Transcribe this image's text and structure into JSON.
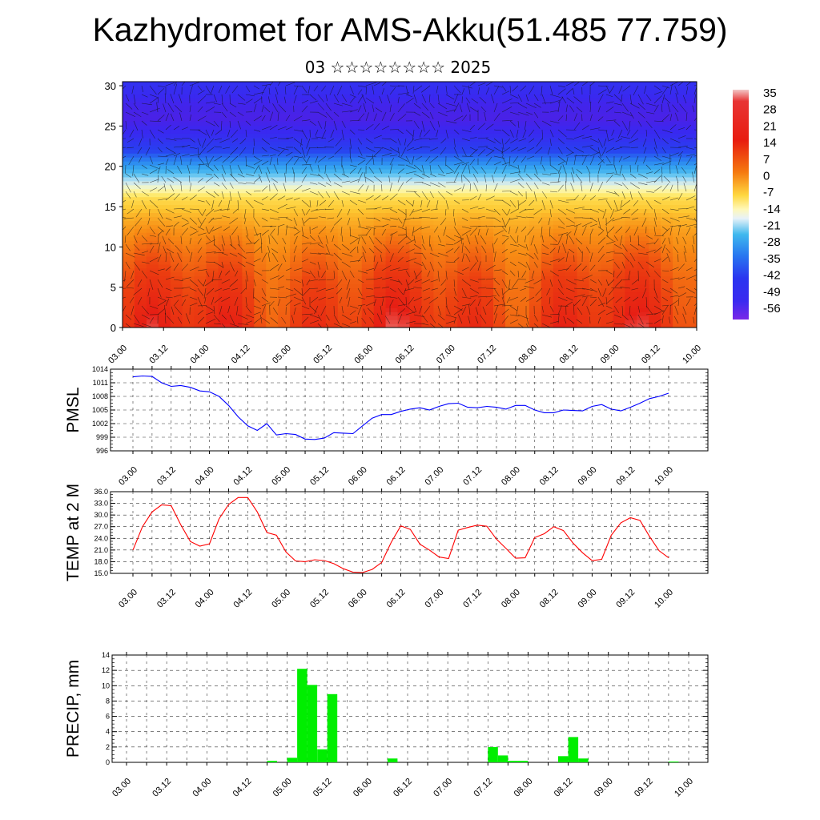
{
  "title": "Kazhydromet for AMS-Akku(51.485 77.759)",
  "subtitle": "03 ☆☆☆☆☆☆☆☆ 2025",
  "time_ticks": [
    "03.00",
    "03.12",
    "04.00",
    "04.12",
    "05.00",
    "05.12",
    "06.00",
    "06.12",
    "07.00",
    "07.12",
    "08.00",
    "08.12",
    "09.00",
    "09.12",
    "10.00"
  ],
  "chart_data": [
    {
      "type": "heatmap",
      "title": "",
      "xlabel": "",
      "ylabel": "",
      "x_ticks": [
        "03.00",
        "03.12",
        "04.00",
        "04.12",
        "05.00",
        "05.12",
        "06.00",
        "06.12",
        "07.00",
        "07.12",
        "08.00",
        "08.12",
        "09.00",
        "09.12",
        "10.00"
      ],
      "y_ticks": [
        0,
        5,
        10,
        15,
        20,
        25,
        30
      ],
      "ylim": [
        0,
        30.5
      ],
      "colorbar_labels": [
        "35",
        "28",
        "21",
        "14",
        "7",
        "0",
        "-7",
        "-14",
        "-21",
        "-28",
        "-35",
        "-42",
        "-49",
        "-56"
      ],
      "overlay": "wind vectors",
      "profile_levels": [
        0,
        3,
        6,
        9,
        12,
        14,
        16,
        17,
        18,
        19,
        20,
        21,
        22,
        24,
        26,
        28,
        30.5
      ],
      "profile_values": [
        24,
        22,
        20,
        17,
        13,
        9,
        3,
        -5,
        -13,
        -20,
        -28,
        -34,
        -42,
        -48,
        -52,
        -50,
        -46
      ],
      "colors": {
        "low": "#6018d8",
        "mid": "#fff59a",
        "high": "#e81c10"
      }
    },
    {
      "type": "line",
      "ylabel": "PMSL",
      "y_ticks": [
        996,
        999,
        1002,
        1005,
        1008,
        1011,
        1014
      ],
      "ylim": [
        996,
        1014
      ],
      "color": "#0000ff",
      "x": [
        0,
        3,
        6,
        9,
        12,
        15,
        18,
        21,
        24,
        27,
        30,
        33,
        36,
        39,
        42,
        45,
        48,
        51,
        54,
        57,
        60,
        63,
        66,
        69,
        72,
        75,
        78,
        81,
        84,
        87,
        90,
        93,
        96,
        99,
        102,
        105,
        108,
        111,
        114,
        117,
        120,
        123,
        126,
        129,
        132,
        135,
        138,
        141,
        144,
        147,
        150,
        153,
        156,
        159,
        162,
        165,
        168
      ],
      "values": [
        1012.3,
        1012.5,
        1012.4,
        1011.0,
        1010.2,
        1010.4,
        1010.0,
        1009.2,
        1009.0,
        1008.0,
        1006.0,
        1003.5,
        1001.5,
        1000.5,
        1002.0,
        999.5,
        999.8,
        999.6,
        998.6,
        998.5,
        998.8,
        1000.0,
        999.9,
        999.8,
        1001.5,
        1003.2,
        1004.0,
        1004.0,
        1004.7,
        1005.2,
        1005.5,
        1005.0,
        1005.8,
        1006.4,
        1006.5,
        1005.6,
        1005.5,
        1005.8,
        1005.6,
        1005.2,
        1006.0,
        1006.0,
        1005.0,
        1004.4,
        1004.4,
        1005.0,
        1004.9,
        1004.8,
        1005.8,
        1006.2,
        1005.2,
        1004.8,
        1005.6,
        1006.5,
        1007.5,
        1008.0,
        1008.7
      ]
    },
    {
      "type": "line",
      "ylabel": "TEMP at 2 M",
      "y_ticks": [
        "15.0",
        "18.0",
        "21.0",
        "24.0",
        "27.0",
        "30.0",
        "33.0",
        "36.0"
      ],
      "ylim": [
        15,
        36
      ],
      "color": "#ff0000",
      "x": [
        0,
        3,
        6,
        9,
        12,
        15,
        18,
        21,
        24,
        27,
        30,
        33,
        36,
        39,
        42,
        45,
        48,
        51,
        54,
        57,
        60,
        63,
        66,
        69,
        72,
        75,
        78,
        81,
        84,
        87,
        90,
        93,
        96,
        99,
        102,
        105,
        108,
        111,
        114,
        117,
        120,
        123,
        126,
        129,
        132,
        135,
        138,
        141,
        144,
        147,
        150,
        153,
        156,
        159,
        162,
        165,
        168
      ],
      "values": [
        21.0,
        27.0,
        30.8,
        32.6,
        32.4,
        27.5,
        23.2,
        22.0,
        22.6,
        29.0,
        32.7,
        34.5,
        34.5,
        30.8,
        25.5,
        24.8,
        20.5,
        18.2,
        18.0,
        18.5,
        18.3,
        17.5,
        16.2,
        15.3,
        15.2,
        16.0,
        17.8,
        23.0,
        27.2,
        26.3,
        22.5,
        21.0,
        19.2,
        18.8,
        26.1,
        26.8,
        27.4,
        27.1,
        23.8,
        21.4,
        18.9,
        19.0,
        24.2,
        25.2,
        27.0,
        26.0,
        22.8,
        20.3,
        18.3,
        18.6,
        24.8,
        28.0,
        29.3,
        28.6,
        24.5,
        20.8,
        19.0
      ]
    },
    {
      "type": "bar",
      "ylabel": "PRECIP, mm",
      "y_ticks": [
        0,
        2,
        4,
        6,
        8,
        10,
        12,
        14
      ],
      "ylim": [
        0,
        14
      ],
      "color": "#00ee00",
      "x": [
        42,
        48,
        51,
        54,
        57,
        60,
        78,
        108,
        111,
        114,
        117,
        129,
        132,
        135,
        162
      ],
      "values": [
        0.2,
        0.6,
        12.2,
        10.1,
        1.7,
        8.9,
        0.5,
        2.0,
        0.9,
        0.2,
        0.2,
        0.8,
        3.3,
        0.5,
        0.1
      ]
    }
  ]
}
